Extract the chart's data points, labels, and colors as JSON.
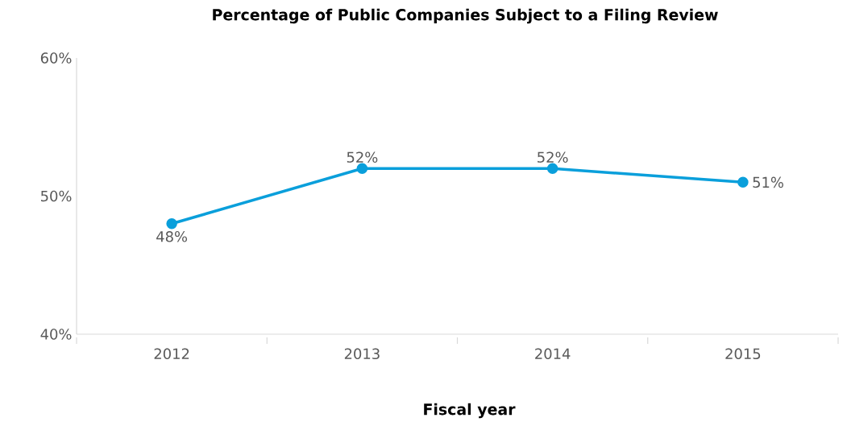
{
  "chart_data": {
    "type": "line",
    "title": "Percentage of Public Companies Subject to a Filing Review",
    "xlabel": "Fiscal year",
    "categories": [
      "2012",
      "2013",
      "2014",
      "2015"
    ],
    "values": [
      48,
      52,
      52,
      51
    ],
    "value_labels": [
      "48%",
      "52%",
      "52%",
      "51%"
    ],
    "color": "#0a9fdb",
    "marker": "circle",
    "line_style": "solid",
    "grid": false,
    "ylim": [
      40,
      60
    ],
    "yticks": [
      {
        "value": 40,
        "label": "40%"
      },
      {
        "value": 50,
        "label": "50%"
      },
      {
        "value": 60,
        "label": "60%"
      }
    ]
  }
}
